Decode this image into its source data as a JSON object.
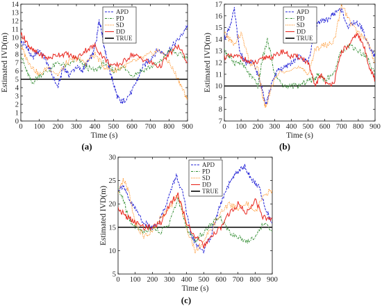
{
  "colors": {
    "APD": "#1f1fd6",
    "PD": "#2e8b2e",
    "SD": "#ff8c1a",
    "DD": "#e8261e",
    "TRUE": "#000000"
  },
  "chart_data": [
    {
      "type": "line",
      "panel_label": "(a)",
      "xlabel": "Time (s)",
      "ylabel": "Estimated IVD(m)",
      "xlim": [
        0,
        900
      ],
      "ylim": [
        0,
        14
      ],
      "xticks": [
        0,
        100,
        200,
        300,
        400,
        500,
        600,
        700,
        800,
        900
      ],
      "yticks": [
        0,
        1,
        2,
        3,
        4,
        5,
        6,
        7,
        8,
        9,
        10,
        11,
        12,
        13,
        14
      ],
      "legend": "top-right",
      "series": [
        {
          "name": "APD",
          "style": "dash",
          "x": [
            0,
            30,
            60,
            100,
            130,
            160,
            200,
            230,
            260,
            300,
            330,
            360,
            390,
            410,
            420,
            430,
            450,
            480,
            500,
            520,
            540,
            560,
            600,
            630,
            660,
            700,
            740,
            780,
            820,
            860,
            900
          ],
          "y": [
            9.5,
            9,
            7.5,
            8.5,
            7.5,
            6,
            4,
            6.5,
            5.5,
            6.5,
            6,
            7,
            8,
            10,
            12,
            11.5,
            9,
            6,
            4.5,
            3,
            2.2,
            2.5,
            3.5,
            5,
            6.5,
            7.5,
            8.5,
            8,
            9,
            10,
            11.5
          ]
        },
        {
          "name": "PD",
          "style": "dash-dot",
          "x": [
            0,
            30,
            60,
            100,
            150,
            200,
            250,
            300,
            350,
            400,
            450,
            500,
            550,
            600,
            650,
            700,
            750,
            800,
            850,
            900
          ],
          "y": [
            8,
            6,
            4.5,
            5.5,
            6,
            7,
            6.5,
            7.5,
            6.5,
            6,
            7,
            6,
            6.5,
            5.5,
            6,
            6.5,
            7,
            8.5,
            8,
            7.5
          ]
        },
        {
          "name": "SD",
          "style": "dotted",
          "x": [
            0,
            30,
            60,
            100,
            150,
            200,
            250,
            300,
            350,
            400,
            450,
            500,
            550,
            600,
            650,
            700,
            750,
            800,
            850,
            880,
            900
          ],
          "y": [
            9,
            7.5,
            6.5,
            5.5,
            6.5,
            5.5,
            7,
            7.5,
            7,
            8,
            6.5,
            6,
            6.5,
            7,
            7.5,
            8,
            8.5,
            7,
            5,
            3.5,
            2.5
          ]
        },
        {
          "name": "DD",
          "style": "solid",
          "x": [
            0,
            30,
            60,
            100,
            150,
            200,
            250,
            300,
            350,
            400,
            450,
            500,
            550,
            600,
            650,
            700,
            750,
            800,
            850,
            900
          ],
          "y": [
            10.5,
            9.5,
            8.5,
            8,
            7.5,
            8,
            8,
            7.5,
            8.5,
            9,
            7.5,
            6.5,
            7,
            8,
            7.5,
            7,
            6.5,
            8,
            9,
            7
          ]
        },
        {
          "name": "TRUE",
          "style": "solid-thick",
          "x": [
            0,
            900
          ],
          "y": [
            5,
            5
          ]
        }
      ]
    },
    {
      "type": "line",
      "panel_label": "(b)",
      "xlabel": "Time (s)",
      "ylabel": "Estimated IVD(m)",
      "xlim": [
        0,
        900
      ],
      "ylim": [
        7,
        17
      ],
      "xticks": [
        0,
        100,
        200,
        300,
        400,
        500,
        600,
        700,
        800,
        900
      ],
      "yticks": [
        7,
        8,
        9,
        10,
        11,
        12,
        13,
        14,
        15,
        16,
        17
      ],
      "legend": "top-right",
      "series": [
        {
          "name": "APD",
          "style": "dash",
          "x": [
            0,
            30,
            60,
            90,
            130,
            170,
            200,
            230,
            250,
            280,
            320,
            360,
            400,
            450,
            500,
            530,
            560,
            600,
            640,
            680,
            700,
            740,
            780,
            820,
            860,
            900
          ],
          "y": [
            14,
            15,
            16.5,
            13,
            12,
            12,
            11,
            9.5,
            8.5,
            10,
            11.5,
            11.5,
            12,
            12.5,
            12,
            14,
            15.5,
            15.5,
            16,
            16.5,
            16.5,
            15,
            15.5,
            15,
            13.5,
            12.5
          ]
        },
        {
          "name": "PD",
          "style": "dash-dot",
          "x": [
            0,
            30,
            60,
            100,
            150,
            200,
            230,
            260,
            300,
            350,
            400,
            450,
            500,
            530,
            560,
            600,
            650,
            700,
            750,
            800,
            850,
            900
          ],
          "y": [
            13,
            12.5,
            12,
            12,
            11,
            10,
            12.5,
            14,
            11,
            10,
            10,
            10,
            10.5,
            10.5,
            11,
            10.5,
            11,
            13,
            13.5,
            13,
            12.5,
            11
          ]
        },
        {
          "name": "SD",
          "style": "dotted",
          "x": [
            0,
            30,
            60,
            100,
            150,
            200,
            230,
            250,
            280,
            320,
            380,
            450,
            500,
            540,
            580,
            620,
            660,
            700,
            750,
            800,
            850,
            900
          ],
          "y": [
            14.5,
            14,
            13.5,
            14.5,
            12,
            11.5,
            9,
            8,
            10,
            11,
            11.5,
            11.5,
            11,
            13,
            13.5,
            13.5,
            14,
            17,
            15.5,
            14.5,
            14,
            12
          ]
        },
        {
          "name": "DD",
          "style": "solid",
          "x": [
            0,
            50,
            100,
            150,
            200,
            250,
            300,
            350,
            400,
            450,
            500,
            540,
            580,
            620,
            660,
            700,
            750,
            790,
            830,
            870,
            900
          ],
          "y": [
            12.5,
            12.5,
            12.5,
            12,
            12,
            12.5,
            12.5,
            13,
            12.5,
            12.5,
            12,
            10,
            11,
            10,
            10.5,
            13,
            13.5,
            14.5,
            13.5,
            11.5,
            10.5
          ]
        },
        {
          "name": "TRUE",
          "style": "solid-thick",
          "x": [
            0,
            900
          ],
          "y": [
            10,
            10
          ]
        }
      ]
    },
    {
      "type": "line",
      "panel_label": "(c)",
      "xlabel": "Time (s)",
      "ylabel": "Estimated IVD(m)",
      "xlim": [
        0,
        900
      ],
      "ylim": [
        5,
        30
      ],
      "xticks": [
        0,
        100,
        200,
        300,
        400,
        500,
        600,
        700,
        800,
        900
      ],
      "yticks": [
        5,
        10,
        15,
        20,
        25,
        30
      ],
      "legend": "top-right",
      "series": [
        {
          "name": "APD",
          "style": "dash",
          "x": [
            0,
            30,
            60,
            100,
            150,
            200,
            250,
            300,
            340,
            380,
            420,
            460,
            500,
            540,
            580,
            620,
            660,
            700,
            740,
            780,
            820,
            860,
            900
          ],
          "y": [
            23,
            24,
            21,
            19,
            16,
            15,
            17,
            22,
            26,
            22,
            14,
            11,
            10,
            13,
            18,
            22,
            25,
            27,
            28,
            25,
            24,
            19,
            16
          ]
        },
        {
          "name": "PD",
          "style": "dash-dot",
          "x": [
            0,
            30,
            60,
            100,
            150,
            200,
            250,
            300,
            350,
            400,
            450,
            500,
            550,
            600,
            650,
            700,
            750,
            800,
            850,
            900
          ],
          "y": [
            23,
            21,
            17,
            15,
            14,
            15,
            14,
            16,
            21,
            15,
            12,
            14,
            16,
            17,
            14,
            13,
            12,
            13,
            16,
            14
          ]
        },
        {
          "name": "SD",
          "style": "dotted",
          "x": [
            0,
            30,
            60,
            100,
            150,
            200,
            250,
            300,
            350,
            400,
            450,
            500,
            550,
            600,
            650,
            700,
            750,
            800,
            850,
            900
          ],
          "y": [
            22,
            25,
            23,
            16,
            13,
            14,
            17,
            19,
            22,
            15,
            10,
            12,
            15,
            18,
            20,
            19,
            20,
            18,
            22,
            23
          ]
        },
        {
          "name": "DD",
          "style": "solid",
          "x": [
            0,
            30,
            60,
            100,
            150,
            200,
            250,
            300,
            350,
            400,
            450,
            500,
            550,
            600,
            650,
            700,
            750,
            800,
            850,
            900
          ],
          "y": [
            19,
            18,
            17,
            16,
            15,
            15,
            16,
            20,
            22,
            16,
            13,
            11,
            13,
            15,
            18,
            20,
            18,
            21,
            17,
            17
          ]
        },
        {
          "name": "TRUE",
          "style": "solid-thick",
          "x": [
            0,
            900
          ],
          "y": [
            15,
            15
          ]
        }
      ]
    }
  ]
}
